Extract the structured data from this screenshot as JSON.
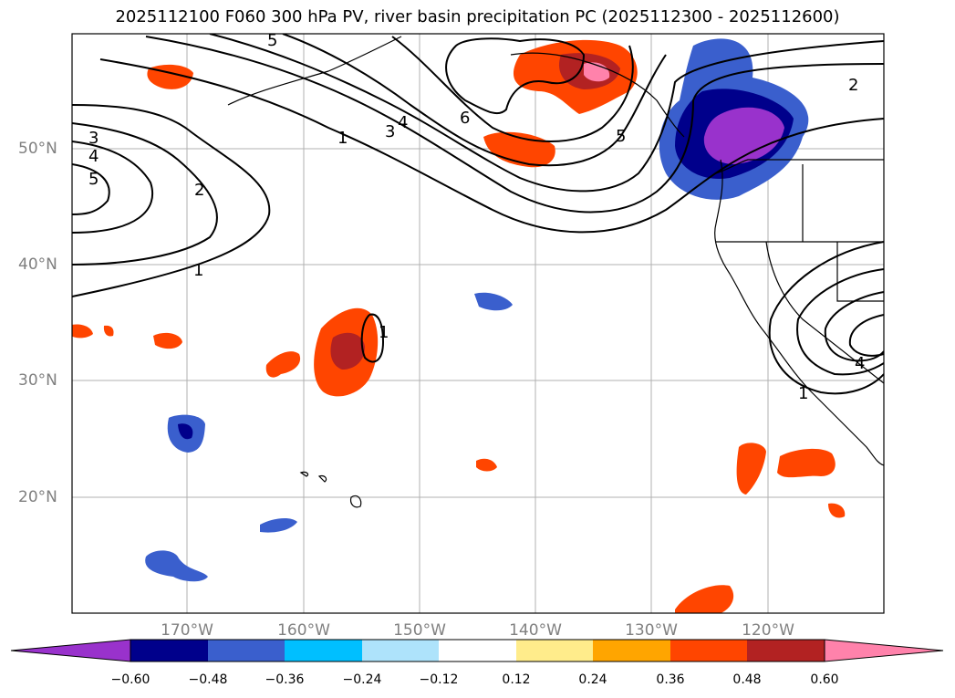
{
  "title": "2025112100 F060 300 hPa PV, river basin precipitation PC (2025112300 - 2025112600)",
  "latitude_labels": [
    "50°N",
    "40°N",
    "30°N",
    "20°N"
  ],
  "longitude_labels": [
    "170°W",
    "160°W",
    "150°W",
    "140°W",
    "130°W",
    "120°W"
  ],
  "contour_labels": [
    "1",
    "2",
    "3",
    "4",
    "5",
    "6"
  ],
  "colorbar": {
    "tick_labels": [
      "−0.60",
      "−0.48",
      "−0.36",
      "−0.24",
      "−0.12",
      "0.12",
      "0.24",
      "0.36",
      "0.48",
      "0.60"
    ],
    "colors": [
      "#9932cc",
      "#00008b",
      "#3a5fcd",
      "#00bfff",
      "#aee3fb",
      "#ffffff",
      "#ffec8b",
      "#ffa500",
      "#ff4500",
      "#b22222",
      "#ff82ab"
    ]
  },
  "chart_data": {
    "type": "map",
    "projection": "plate-carree",
    "lon_range": [
      -180,
      -110
    ],
    "lat_range": [
      10,
      60
    ],
    "lon_ticks": [
      -170,
      -160,
      -150,
      -140,
      -130,
      -120
    ],
    "lat_ticks": [
      20,
      30,
      40,
      50
    ],
    "colorbar_levels": [
      -0.6,
      -0.48,
      -0.36,
      -0.24,
      -0.12,
      0.12,
      0.24,
      0.36,
      0.48,
      0.6
    ],
    "pv_contour_levels": [
      1,
      2,
      3,
      4,
      5,
      6
    ]
  }
}
